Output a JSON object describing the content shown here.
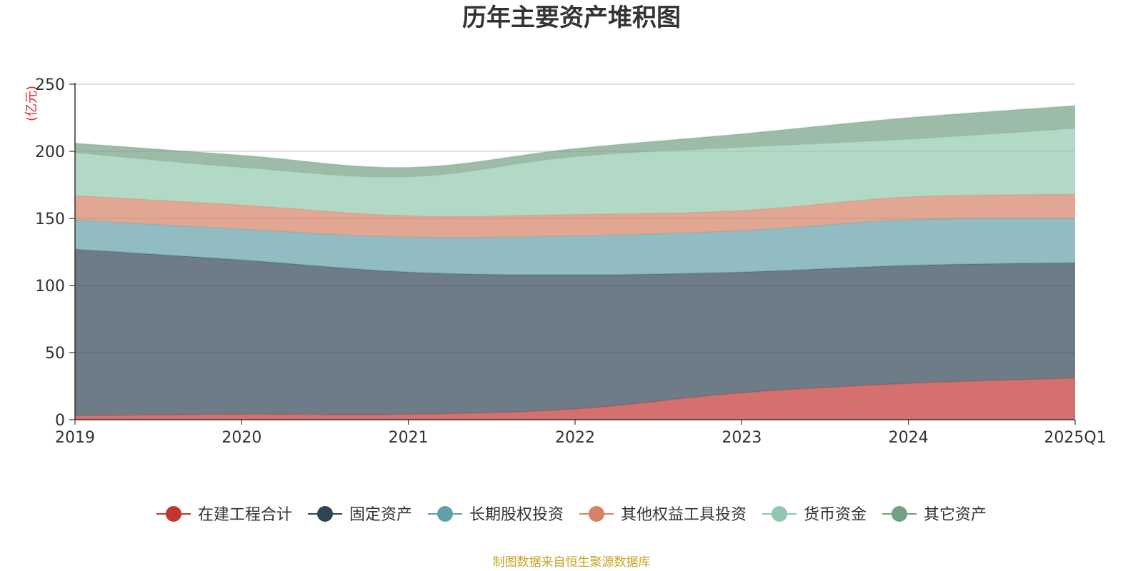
{
  "chart_data": {
    "type": "area",
    "stacked": true,
    "title": "历年主要资产堆积图",
    "unit": "(亿元)",
    "source": "制图数据来自恒生聚源数据库",
    "categories": [
      "2019",
      "2020",
      "2021",
      "2022",
      "2023",
      "2024",
      "2025Q1"
    ],
    "ylim": [
      0,
      250
    ],
    "yticks": [
      0,
      50,
      100,
      150,
      200,
      250
    ],
    "grid": true,
    "legend_position": "bottom",
    "series": [
      {
        "name": "在建工程合计",
        "color": "#c23531",
        "line_color": "#c23531",
        "values": [
          3,
          4,
          4,
          8,
          20,
          27,
          31
        ]
      },
      {
        "name": "固定资产",
        "color": "#2f4554",
        "line_color": "#2f4554",
        "values": [
          124,
          115,
          106,
          100,
          90,
          88,
          86
        ]
      },
      {
        "name": "长期股权投资",
        "color": "#61a0a8",
        "line_color": "#61a0a8",
        "values": [
          22,
          23,
          26,
          29,
          31,
          34,
          33
        ]
      },
      {
        "name": "其他权益工具投资",
        "color": "#d48265",
        "line_color": "#d48265",
        "values": [
          18,
          18,
          16,
          16,
          15,
          17,
          18
        ]
      },
      {
        "name": "货币资金",
        "color": "#91c7ae",
        "line_color": "#91c7ae",
        "values": [
          32,
          28,
          29,
          43,
          47,
          43,
          49
        ]
      },
      {
        "name": "其它资产",
        "color": "#749f83",
        "line_color": "#749f83",
        "values": [
          7,
          9,
          7,
          6,
          10,
          16,
          17
        ]
      }
    ]
  }
}
